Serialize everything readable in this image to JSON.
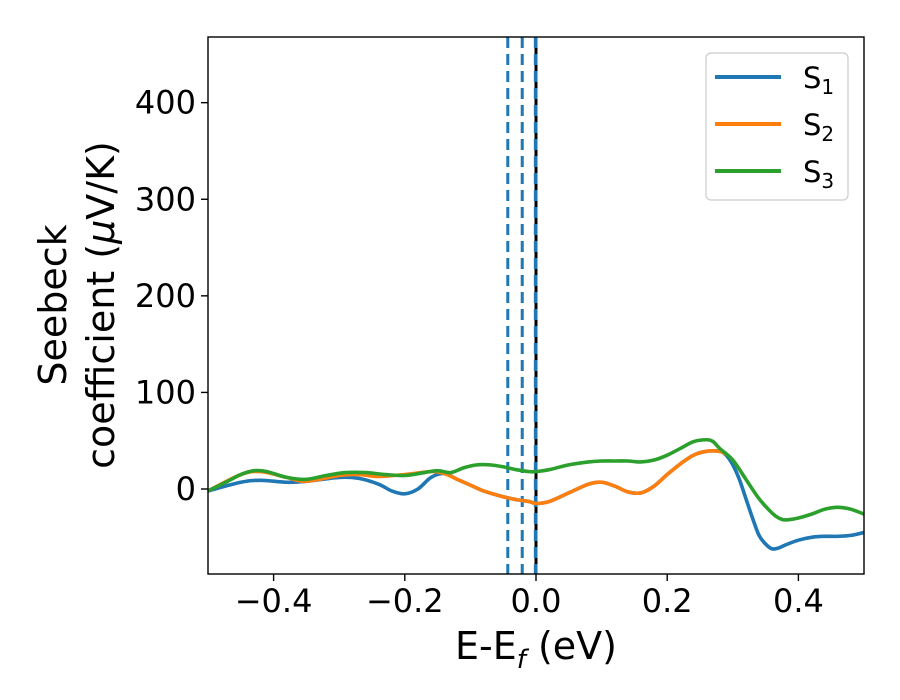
{
  "chart_data": {
    "type": "line",
    "xlabel": {
      "main": "E-E",
      "sub": "f",
      "unit": " (eV)"
    },
    "ylabel": {
      "line1": "Seebeck",
      "line2": "coefficient  (",
      "mu": "μ",
      "unit": "V/K)"
    },
    "xlim": [
      -0.5,
      0.5
    ],
    "ylim": [
      -88,
      468
    ],
    "x_ticks": [
      -0.4,
      -0.2,
      0.0,
      0.2,
      0.4
    ],
    "x_tick_labels": [
      "−0.4",
      "−0.2",
      "0.0",
      "0.2",
      "0.4"
    ],
    "y_ticks": [
      0,
      100,
      200,
      300,
      400
    ],
    "y_tick_labels": [
      "0",
      "100",
      "200",
      "300",
      "400"
    ],
    "grid": false,
    "legend_position": "top-right",
    "series": [
      {
        "name": "S1",
        "legend_main": "S",
        "legend_sub": "1",
        "color": "#1f77b4",
        "x": [
          -0.5,
          -0.45,
          -0.42,
          -0.38,
          -0.35,
          -0.3,
          -0.27,
          -0.24,
          -0.22,
          -0.2,
          -0.18,
          -0.16,
          -0.14,
          -0.12,
          -0.1,
          -0.08,
          -0.05,
          -0.03,
          -0.01,
          0.0,
          0.02,
          0.05,
          0.08,
          0.1,
          0.12,
          0.14,
          0.16,
          0.18,
          0.2,
          0.22,
          0.24,
          0.26,
          0.28,
          0.29,
          0.3,
          0.31,
          0.32,
          0.33,
          0.34,
          0.35,
          0.36,
          0.37,
          0.38,
          0.4,
          0.42,
          0.44,
          0.46,
          0.48,
          0.5
        ],
        "y": [
          -2,
          7,
          9,
          7,
          8,
          12,
          11,
          5,
          -2,
          -5,
          0,
          12,
          16,
          10,
          4,
          -2,
          -8,
          -11,
          -13,
          -15,
          -13,
          -4,
          5,
          7,
          3,
          -3,
          -4,
          3,
          15,
          26,
          35,
          39,
          39,
          35,
          25,
          10,
          -10,
          -30,
          -48,
          -57,
          -62,
          -61,
          -58,
          -53,
          -50,
          -49,
          -49,
          -48,
          -45
        ]
      },
      {
        "name": "S2",
        "legend_main": "S",
        "legend_sub": "2",
        "color": "#ff7f0e",
        "x": [
          -0.5,
          -0.45,
          -0.42,
          -0.38,
          -0.35,
          -0.3,
          -0.27,
          -0.24,
          -0.2,
          -0.16,
          -0.14,
          -0.12,
          -0.1,
          -0.08,
          -0.05,
          -0.03,
          -0.01,
          0.0,
          0.02,
          0.05,
          0.08,
          0.1,
          0.12,
          0.14,
          0.16,
          0.18,
          0.2,
          0.22,
          0.24,
          0.26,
          0.28,
          0.29
        ],
        "y": [
          -2,
          15,
          18,
          12,
          8,
          14,
          15,
          13,
          15,
          18,
          16,
          10,
          4,
          -2,
          -8,
          -11,
          -13,
          -15,
          -13,
          -4,
          5,
          7,
          3,
          -3,
          -4,
          3,
          15,
          26,
          35,
          39,
          39,
          36
        ]
      },
      {
        "name": "S3",
        "legend_main": "S",
        "legend_sub": "3",
        "color": "#2ca02c",
        "x": [
          -0.5,
          -0.47,
          -0.45,
          -0.43,
          -0.41,
          -0.38,
          -0.35,
          -0.32,
          -0.29,
          -0.26,
          -0.23,
          -0.2,
          -0.17,
          -0.15,
          -0.13,
          -0.11,
          -0.09,
          -0.07,
          -0.05,
          -0.03,
          -0.01,
          0.0,
          0.02,
          0.05,
          0.08,
          0.1,
          0.12,
          0.14,
          0.16,
          0.18,
          0.2,
          0.22,
          0.24,
          0.26,
          0.27,
          0.28,
          0.3,
          0.32,
          0.34,
          0.36,
          0.37,
          0.38,
          0.4,
          0.42,
          0.44,
          0.46,
          0.48,
          0.5
        ],
        "y": [
          -2,
          8,
          15,
          19,
          18,
          12,
          10,
          14,
          17,
          17,
          15,
          14,
          17,
          19,
          17,
          22,
          25,
          25,
          23,
          20,
          18,
          18,
          20,
          25,
          28,
          29,
          29,
          29,
          28,
          30,
          35,
          42,
          49,
          51,
          49,
          42,
          30,
          10,
          -10,
          -25,
          -30,
          -32,
          -30,
          -26,
          -21,
          -19,
          -21,
          -26
        ]
      }
    ],
    "vlines": [
      {
        "x": -0.043,
        "color": "#1f77b4",
        "style": "dashed"
      },
      {
        "x": -0.021,
        "color": "#1f77b4",
        "style": "dashed"
      },
      {
        "x": -0.001,
        "color": "#1f77b4",
        "style": "dashed"
      },
      {
        "x": 0.0,
        "color": "#000000",
        "style": "dashed-overlay"
      }
    ]
  }
}
